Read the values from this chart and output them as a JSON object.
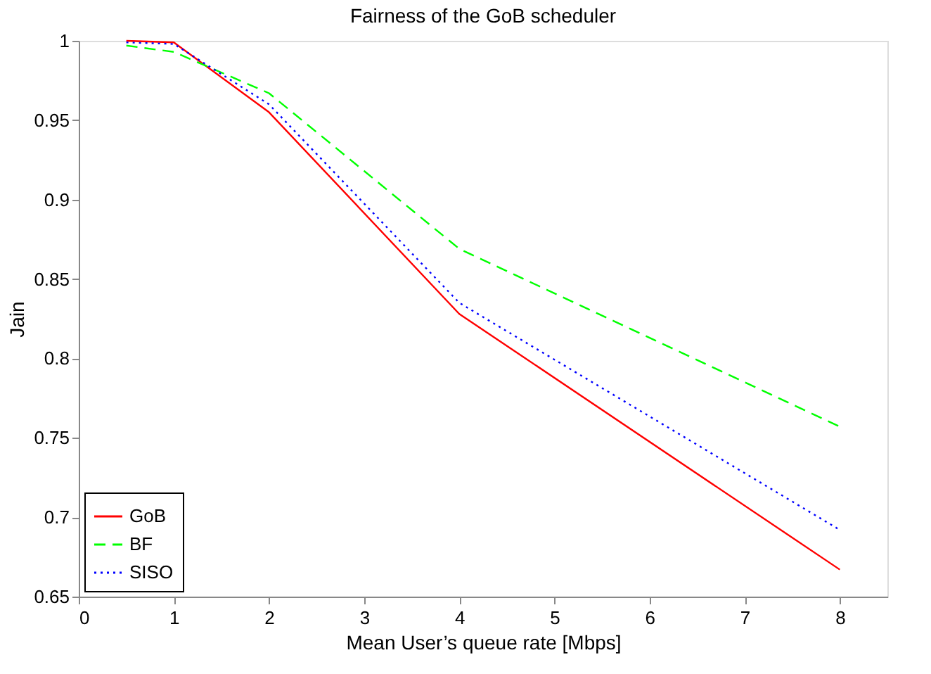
{
  "chart_data": {
    "type": "line",
    "title": "Fairness of the GoB scheduler",
    "xlabel": "Mean User’s queue rate [Mbps]",
    "ylabel": "Jain",
    "x": [
      0.5,
      1,
      2,
      4,
      8
    ],
    "series": [
      {
        "name": "GoB",
        "color": "#ff0000",
        "line_style": "solid",
        "values": [
          1.0,
          0.999,
          0.955,
          0.828,
          0.667
        ]
      },
      {
        "name": "BF",
        "color": "#00ff00",
        "line_style": "dashed",
        "values": [
          0.997,
          0.993,
          0.967,
          0.869,
          0.757
        ]
      },
      {
        "name": "SISO",
        "color": "#0000ff",
        "line_style": "dotted",
        "values": [
          0.999,
          0.998,
          0.96,
          0.835,
          0.692
        ]
      }
    ],
    "xlim": [
      0,
      8.5
    ],
    "xticks": [
      0,
      1,
      2,
      3,
      4,
      5,
      6,
      7,
      8
    ],
    "ylim": [
      0.65,
      1
    ],
    "yticks": [
      0.65,
      0.7,
      0.75,
      0.8,
      0.85,
      0.9,
      0.95,
      1
    ],
    "grid": false,
    "legend": "bottom left",
    "marker": "none"
  }
}
